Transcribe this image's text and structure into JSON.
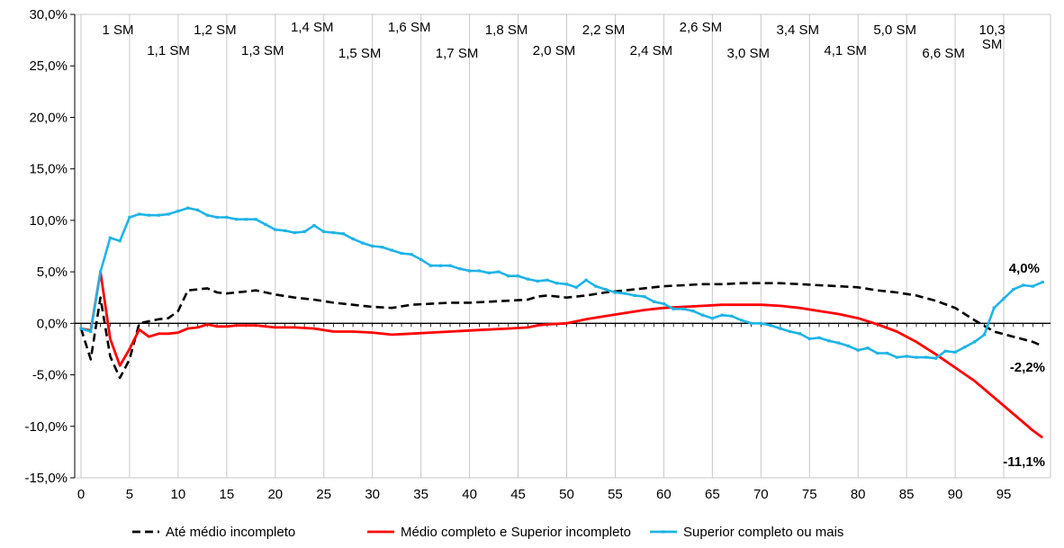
{
  "chart_data": {
    "type": "line",
    "title": "",
    "xlabel": "",
    "ylabel": "",
    "xlim": [
      0,
      99
    ],
    "ylim": [
      -15,
      30
    ],
    "y_ticks": [
      30,
      25,
      20,
      15,
      10,
      5,
      0,
      -5,
      -10,
      -15
    ],
    "y_tick_labels": [
      "30,0%",
      "25,0%",
      "20,0%",
      "15,0%",
      "10,0%",
      "5,0%",
      "0,0%",
      "-5,0%",
      "-10,0%",
      "-15,0%"
    ],
    "x_ticks": [
      0,
      5,
      10,
      15,
      20,
      25,
      30,
      35,
      40,
      45,
      50,
      55,
      60,
      65,
      70,
      75,
      80,
      85,
      90,
      95
    ],
    "x_tick_labels": [
      "0",
      "5",
      "10",
      "15",
      "20",
      "25",
      "30",
      "35",
      "40",
      "45",
      "50",
      "55",
      "60",
      "65",
      "70",
      "75",
      "80",
      "85",
      "90",
      "95"
    ],
    "grid": "vertical",
    "legend_position": "bottom",
    "annotations": [
      {
        "text": "1 SM",
        "x": 3.8,
        "row": 1
      },
      {
        "text": "1,1 SM",
        "x": 9,
        "row": 2
      },
      {
        "text": "1,2 SM",
        "x": 13.8,
        "row": 1
      },
      {
        "text": "1,3 SM",
        "x": 18.7,
        "row": 2
      },
      {
        "text": "1,4 SM",
        "x": 23.8,
        "row": 0
      },
      {
        "text": "1,5 SM",
        "x": 28.7,
        "row": 3
      },
      {
        "text": "1,6 SM",
        "x": 33.8,
        "row": 0
      },
      {
        "text": "1,7 SM",
        "x": 38.7,
        "row": 3
      },
      {
        "text": "1,8 SM",
        "x": 43.8,
        "row": 1
      },
      {
        "text": "2,0 SM",
        "x": 48.7,
        "row": 2
      },
      {
        "text": "2,2 SM",
        "x": 53.8,
        "row": 1
      },
      {
        "text": "2,4 SM",
        "x": 58.7,
        "row": 2
      },
      {
        "text": "2,6 SM",
        "x": 63.8,
        "row": 0
      },
      {
        "text": "3,0 SM",
        "x": 68.7,
        "row": 3
      },
      {
        "text": "3,4 SM",
        "x": 73.8,
        "row": 1
      },
      {
        "text": "4,1 SM",
        "x": 78.7,
        "row": 2
      },
      {
        "text": "5,0 SM",
        "x": 83.8,
        "row": 1
      },
      {
        "text": "6,6 SM",
        "x": 88.8,
        "row": 3
      },
      {
        "text": "10,3",
        "x": 93.8,
        "row": 1
      },
      {
        "text": "SM",
        "x": 93.8,
        "row": 2
      }
    ],
    "end_labels": [
      {
        "text": "4,0%",
        "series": 2,
        "x": 98,
        "y": 4.0
      },
      {
        "text": "-2,2%",
        "series": 0,
        "x": 98,
        "y": -2.2
      },
      {
        "text": "-11,1%",
        "series": 1,
        "x": 98,
        "y": -11.1
      }
    ],
    "series": [
      {
        "name": "Até médio incompleto",
        "color": "#000000",
        "dash": true,
        "x": [
          0,
          1,
          2,
          3,
          4,
          5,
          6,
          7,
          8,
          9,
          10,
          11,
          12,
          13,
          14,
          15,
          16,
          17,
          18,
          20,
          22,
          24,
          26,
          28,
          30,
          32,
          34,
          36,
          38,
          40,
          42,
          44,
          46,
          47,
          48,
          50,
          52,
          54,
          56,
          58,
          60,
          62,
          64,
          66,
          68,
          70,
          72,
          74,
          76,
          78,
          80,
          82,
          84,
          86,
          88,
          90,
          92,
          94,
          96,
          98,
          99
        ],
        "values": [
          -0.5,
          -3.5,
          2.5,
          -3.2,
          -5.3,
          -3.5,
          0.0,
          0.2,
          0.4,
          0.5,
          1.2,
          3.2,
          3.3,
          3.4,
          3.0,
          2.9,
          3.0,
          3.1,
          3.2,
          2.8,
          2.5,
          2.3,
          2.0,
          1.8,
          1.6,
          1.5,
          1.8,
          1.9,
          2.0,
          2.0,
          2.1,
          2.2,
          2.3,
          2.6,
          2.7,
          2.5,
          2.7,
          3.0,
          3.2,
          3.4,
          3.6,
          3.7,
          3.8,
          3.8,
          3.9,
          3.9,
          3.9,
          3.8,
          3.7,
          3.6,
          3.5,
          3.2,
          3.0,
          2.7,
          2.2,
          1.5,
          0.3,
          -0.8,
          -1.3,
          -1.8,
          -2.2
        ]
      },
      {
        "name": "Médio completo e Superior incompleto",
        "color": "#ff0000",
        "dash": false,
        "x": [
          0,
          1,
          2,
          3,
          4,
          5,
          6,
          7,
          8,
          9,
          10,
          11,
          12,
          13,
          14,
          15,
          16,
          17,
          18,
          20,
          22,
          24,
          26,
          28,
          30,
          32,
          34,
          36,
          38,
          40,
          42,
          44,
          46,
          47,
          48,
          50,
          52,
          54,
          56,
          58,
          60,
          62,
          64,
          66,
          68,
          70,
          72,
          74,
          76,
          78,
          80,
          82,
          84,
          86,
          88,
          90,
          92,
          94,
          96,
          98,
          99
        ],
        "values": [
          -0.5,
          -0.7,
          5.0,
          -1.5,
          -4.1,
          -2.5,
          -0.6,
          -1.3,
          -1.0,
          -1.0,
          -0.9,
          -0.5,
          -0.4,
          -0.1,
          -0.3,
          -0.3,
          -0.2,
          -0.2,
          -0.2,
          -0.4,
          -0.4,
          -0.5,
          -0.8,
          -0.8,
          -0.9,
          -1.1,
          -1.0,
          -0.9,
          -0.8,
          -0.7,
          -0.6,
          -0.5,
          -0.4,
          -0.2,
          -0.1,
          0.0,
          0.4,
          0.7,
          1.0,
          1.3,
          1.5,
          1.6,
          1.7,
          1.8,
          1.8,
          1.8,
          1.7,
          1.5,
          1.2,
          0.9,
          0.5,
          -0.1,
          -0.8,
          -1.8,
          -3.0,
          -4.3,
          -5.6,
          -7.2,
          -8.8,
          -10.4,
          -11.1
        ]
      },
      {
        "name": "Superior completo ou mais",
        "color": "#1fb4e6",
        "dash": false,
        "x": [
          0,
          1,
          2,
          3,
          4,
          5,
          6,
          7,
          8,
          9,
          10,
          11,
          12,
          13,
          14,
          15,
          16,
          17,
          18,
          19,
          20,
          21,
          22,
          23,
          24,
          25,
          26,
          27,
          28,
          29,
          30,
          31,
          32,
          33,
          34,
          35,
          36,
          37,
          38,
          39,
          40,
          41,
          42,
          43,
          44,
          45,
          46,
          47,
          48,
          49,
          50,
          51,
          52,
          53,
          54,
          55,
          56,
          57,
          58,
          59,
          60,
          61,
          62,
          63,
          64,
          65,
          66,
          67,
          68,
          69,
          70,
          71,
          72,
          73,
          74,
          75,
          76,
          77,
          78,
          79,
          80,
          81,
          82,
          83,
          84,
          85,
          86,
          87,
          88,
          89,
          90,
          91,
          92,
          93,
          94,
          95,
          96,
          97,
          98,
          99
        ],
        "values": [
          -0.5,
          -0.8,
          5.0,
          8.3,
          8.0,
          10.3,
          10.6,
          10.5,
          10.5,
          10.6,
          10.9,
          11.2,
          11.0,
          10.5,
          10.3,
          10.3,
          10.1,
          10.1,
          10.1,
          9.6,
          9.1,
          9.0,
          8.8,
          8.9,
          9.5,
          8.9,
          8.8,
          8.7,
          8.2,
          7.8,
          7.5,
          7.4,
          7.1,
          6.8,
          6.7,
          6.2,
          5.6,
          5.6,
          5.6,
          5.3,
          5.1,
          5.1,
          4.9,
          5.0,
          4.6,
          4.6,
          4.3,
          4.1,
          4.2,
          3.9,
          3.8,
          3.5,
          4.2,
          3.6,
          3.3,
          3.0,
          2.9,
          2.7,
          2.6,
          2.1,
          1.9,
          1.4,
          1.4,
          1.2,
          0.8,
          0.5,
          0.8,
          0.7,
          0.3,
          0.0,
          0.0,
          -0.2,
          -0.5,
          -0.8,
          -1.0,
          -1.5,
          -1.4,
          -1.7,
          -1.9,
          -2.2,
          -2.6,
          -2.4,
          -2.9,
          -2.9,
          -3.3,
          -3.2,
          -3.3,
          -3.3,
          -3.4,
          -2.7,
          -2.8,
          -2.3,
          -1.8,
          -1.1,
          1.5,
          2.4,
          3.3,
          3.7,
          3.6,
          4.0
        ]
      }
    ]
  }
}
